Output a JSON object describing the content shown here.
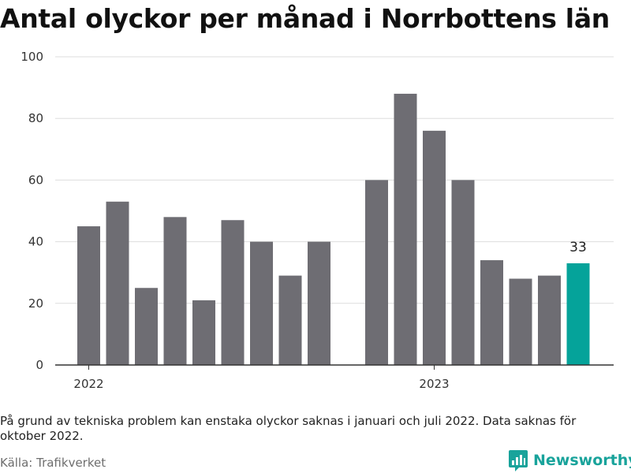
{
  "title": "Antal olyckor per månad i Norrbottens län",
  "note": "På grund av tekniska problem kan enstaka olyckor saknas i januari och juli 2022. Data saknas för oktober 2022.",
  "source": "Källa: Trafikverket",
  "brand": {
    "name": "Newsworthy",
    "icon": "newsworthy-logo-icon",
    "color": "#19a39b"
  },
  "chart_data": {
    "type": "bar",
    "title": "Antal olyckor per månad i Norrbottens län",
    "xlabel": "",
    "ylabel": "",
    "ylim": [
      0,
      100
    ],
    "yticks": [
      0,
      20,
      40,
      60,
      80,
      100
    ],
    "x_tick_labels": [
      {
        "label": "2022",
        "at": "2022-01"
      },
      {
        "label": "2023",
        "at": "2023-01"
      }
    ],
    "grid": true,
    "legend": "none",
    "colors": {
      "default": "#6e6d73",
      "highlight": "#05a39a"
    },
    "bars": [
      {
        "month": "2022-01",
        "value": 45
      },
      {
        "month": "2022-02",
        "value": 53
      },
      {
        "month": "2022-03",
        "value": 25
      },
      {
        "month": "2022-04",
        "value": 48
      },
      {
        "month": "2022-05",
        "value": 21
      },
      {
        "month": "2022-06",
        "value": 47
      },
      {
        "month": "2022-07",
        "value": 40
      },
      {
        "month": "2022-08",
        "value": 29
      },
      {
        "month": "2022-09",
        "value": 40
      },
      {
        "month": "2022-10",
        "value": null
      },
      {
        "month": "2022-11",
        "value": 60
      },
      {
        "month": "2022-12",
        "value": 88
      },
      {
        "month": "2023-01",
        "value": 76
      },
      {
        "month": "2023-02",
        "value": 60
      },
      {
        "month": "2023-03",
        "value": 34
      },
      {
        "month": "2023-04",
        "value": 28
      },
      {
        "month": "2023-05",
        "value": 29
      },
      {
        "month": "2023-06",
        "value": 33,
        "highlight": true,
        "data_label": "33"
      }
    ]
  }
}
